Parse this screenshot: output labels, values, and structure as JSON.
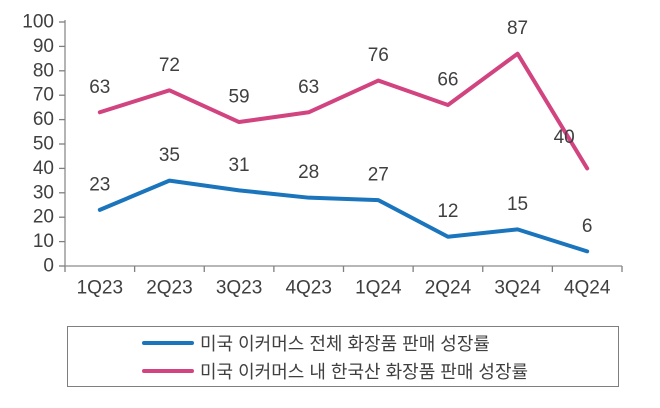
{
  "chart_data": {
    "type": "line",
    "title": "",
    "xlabel": "",
    "ylabel": "",
    "categories": [
      "1Q23",
      "2Q23",
      "3Q23",
      "4Q23",
      "1Q24",
      "2Q24",
      "3Q24",
      "4Q24"
    ],
    "series": [
      {
        "name": "미국 이커머스 전체 화장품 판매 성장률",
        "color": "#1b75bc",
        "values": [
          23,
          35,
          31,
          28,
          27,
          12,
          15,
          6
        ]
      },
      {
        "name": "미국 이커머스 내 한국산 화장품 판매 성장률",
        "color": "#d14480",
        "values": [
          63,
          72,
          59,
          63,
          76,
          66,
          87,
          40
        ],
        "label_offsets": {
          "7": [
            -23,
            -31
          ]
        }
      }
    ],
    "ylim": [
      0,
      100
    ],
    "y_ticks": [
      0,
      10,
      20,
      30,
      40,
      50,
      60,
      70,
      80,
      90,
      100
    ],
    "grid": false,
    "data_labels": true,
    "legend_position": "bottom",
    "axis_color": "#8c8c8c",
    "tick_color": "#808080",
    "text_color": "#404040"
  }
}
